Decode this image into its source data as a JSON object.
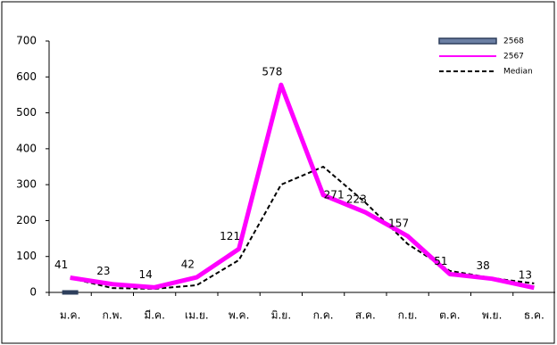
{
  "chart_data": {
    "type": "line",
    "categories": [
      "ม.ค.",
      "ก.พ.",
      "มี.ค.",
      "เม.ย.",
      "พ.ค.",
      "มิ.ย.",
      "ก.ค.",
      "ส.ค.",
      "ก.ย.",
      "ต.ค.",
      "พ.ย.",
      "ธ.ค."
    ],
    "series": [
      {
        "name": "2568",
        "color": "#2e3f5c",
        "values": [
          0,
          null,
          null,
          null,
          null,
          null,
          null,
          null,
          null,
          null,
          null,
          null
        ]
      },
      {
        "name": "2567",
        "color": "#ff00ff",
        "values": [
          41,
          23,
          14,
          42,
          121,
          578,
          271,
          223,
          157,
          51,
          38,
          13
        ]
      },
      {
        "name": "Median",
        "color": "#000000",
        "dashed": true,
        "values": [
          40,
          12,
          10,
          20,
          90,
          300,
          350,
          250,
          135,
          60,
          40,
          25
        ]
      }
    ],
    "labeled_series": "2567",
    "ylim": [
      0,
      700
    ],
    "yticks": [
      0,
      100,
      200,
      300,
      400,
      500,
      600,
      700
    ],
    "legend": "top-right"
  }
}
